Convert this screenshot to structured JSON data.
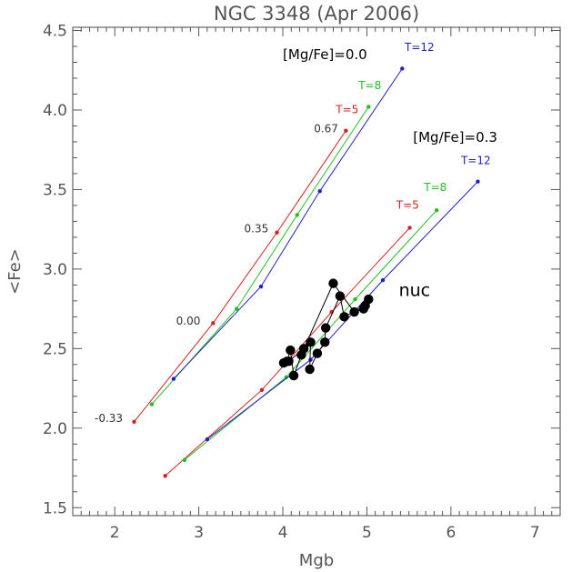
{
  "chart_data": {
    "type": "line",
    "title": "NGC 3348 (Apr 2006)",
    "xlabel": "Mgb",
    "ylabel": "<Fe>",
    "xlim": [
      1.5,
      7.3
    ],
    "ylim": [
      1.45,
      4.52
    ],
    "x_ticks": [
      2,
      3,
      4,
      5,
      6,
      7
    ],
    "y_ticks": [
      1.5,
      2.0,
      2.5,
      3.0,
      3.5,
      4.0,
      4.5
    ],
    "x_tick_labels": [
      "2",
      "3",
      "4",
      "5",
      "6",
      "7"
    ],
    "y_tick_labels": [
      "1.5",
      "2.0",
      "2.5",
      "3.0",
      "3.5",
      "4.0",
      "4.5"
    ],
    "grid": false,
    "colors": {
      "T=5": "#d62020",
      "T=8": "#20c020",
      "T=12": "#2020c8",
      "data": "#000000",
      "axis": "#555555"
    },
    "model_series": [
      {
        "name": "T=5",
        "group": "[Mg/Fe]=0.0",
        "color": "#d62020",
        "x": [
          2.23,
          3.17,
          3.93,
          4.75
        ],
        "y": [
          2.04,
          2.66,
          3.23,
          3.87
        ]
      },
      {
        "name": "T=8",
        "group": "[Mg/Fe]=0.0",
        "color": "#20c020",
        "x": [
          2.44,
          3.45,
          4.17,
          5.02
        ],
        "y": [
          2.15,
          2.75,
          3.34,
          4.02
        ]
      },
      {
        "name": "T=12",
        "group": "[Mg/Fe]=0.0",
        "color": "#2020c8",
        "x": [
          2.7,
          3.74,
          4.44,
          5.42
        ],
        "y": [
          2.31,
          2.89,
          3.49,
          4.26
        ]
      },
      {
        "name": "T=5",
        "group": "[Mg/Fe]=0.3",
        "color": "#d62020",
        "x": [
          2.6,
          3.75,
          4.58,
          5.51
        ],
        "y": [
          1.7,
          2.24,
          2.73,
          3.26
        ]
      },
      {
        "name": "T=8",
        "group": "[Mg/Fe]=0.3",
        "color": "#20c020",
        "x": [
          2.83,
          4.04,
          4.86,
          5.83
        ],
        "y": [
          1.8,
          2.32,
          2.81,
          3.37
        ]
      },
      {
        "name": "T=12",
        "group": "[Mg/Fe]=0.3",
        "color": "#2020c8",
        "x": [
          3.1,
          4.33,
          5.19,
          6.32
        ],
        "y": [
          1.93,
          2.43,
          2.93,
          3.55
        ]
      }
    ],
    "data_points": {
      "x": [
        4.01,
        4.07,
        4.25,
        4.6,
        4.85,
        4.96,
        5.02,
        4.98,
        4.73,
        4.68,
        4.51,
        4.5,
        4.41,
        4.32,
        4.33,
        4.22,
        4.13,
        4.09,
        4.05
      ],
      "y": [
        2.41,
        2.42,
        2.5,
        2.91,
        2.73,
        2.75,
        2.81,
        2.77,
        2.7,
        2.83,
        2.63,
        2.54,
        2.47,
        2.37,
        2.54,
        2.46,
        2.33,
        2.49,
        2.42
      ]
    },
    "model_labels": [
      {
        "text": "[Mg/Fe]=0.0",
        "x": 4.0,
        "y": 4.32,
        "color": "#000000"
      },
      {
        "text": "[Mg/Fe]=0.3",
        "x": 5.55,
        "y": 3.8,
        "color": "#000000"
      },
      {
        "text": "T=12",
        "x": 5.45,
        "y": 4.37,
        "color": "#2020c8"
      },
      {
        "text": "T=8",
        "x": 4.9,
        "y": 4.13,
        "color": "#20c020"
      },
      {
        "text": "T=5",
        "x": 4.63,
        "y": 3.98,
        "color": "#d62020"
      },
      {
        "text": "T=12",
        "x": 6.12,
        "y": 3.66,
        "color": "#2020c8"
      },
      {
        "text": "T=8",
        "x": 5.68,
        "y": 3.49,
        "color": "#20c020"
      },
      {
        "text": "T=5",
        "x": 5.35,
        "y": 3.38,
        "color": "#d62020"
      },
      {
        "text": "0.67",
        "x": 4.37,
        "y": 3.86,
        "color": "#333333"
      },
      {
        "text": "0.35",
        "x": 3.54,
        "y": 3.23,
        "color": "#333333"
      },
      {
        "text": "0.00",
        "x": 2.73,
        "y": 2.65,
        "color": "#333333"
      },
      {
        "text": "-0.33",
        "x": 1.76,
        "y": 2.04,
        "color": "#333333"
      },
      {
        "text": "nuc",
        "x": 5.38,
        "y": 2.83,
        "color": "#000000"
      }
    ]
  }
}
